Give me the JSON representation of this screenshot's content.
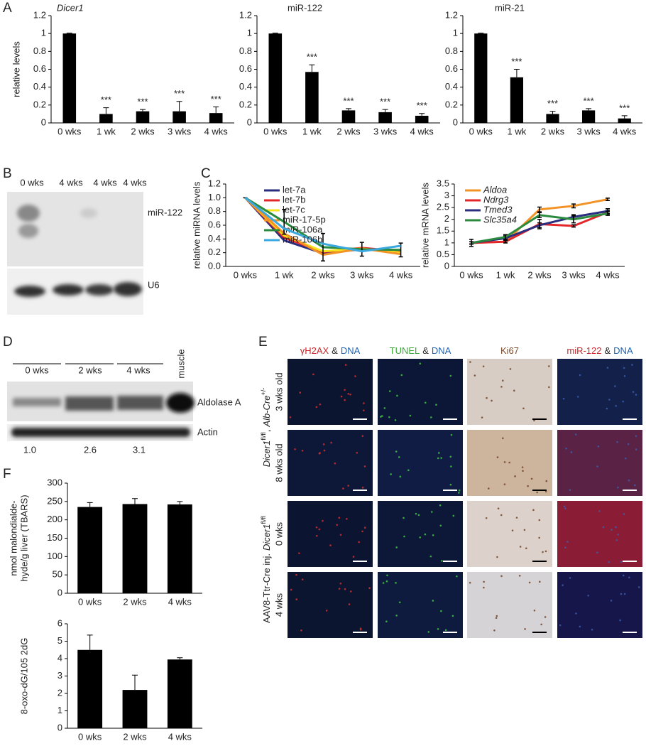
{
  "panel_letters": [
    "A",
    "B",
    "C",
    "D",
    "E",
    "F"
  ],
  "chart_data": [
    {
      "type": "bar",
      "title": "Dicer1",
      "title_italic": true,
      "y_label": [
        "relative levels"
      ],
      "categories": [
        "0 wks",
        "1 wk",
        "2 wks",
        "3 wks",
        "4 wks"
      ],
      "values": [
        1.0,
        0.1,
        0.13,
        0.13,
        0.11
      ],
      "errors": [
        0.005,
        0.07,
        0.02,
        0.11,
        0.07
      ],
      "annotations": [
        null,
        "***",
        "***",
        "***",
        "***"
      ],
      "color": "#000000",
      "ylim": [
        0,
        1.2
      ],
      "yticks": [
        0,
        0.2,
        0.4,
        0.6,
        0.8,
        1,
        1.2
      ]
    },
    {
      "type": "bar",
      "title": "miR-122",
      "categories": [
        "0 wks",
        "1 wk",
        "2 wks",
        "3 wks",
        "4 wks"
      ],
      "values": [
        1.0,
        0.57,
        0.14,
        0.12,
        0.08
      ],
      "errors": [
        0.005,
        0.08,
        0.02,
        0.03,
        0.025
      ],
      "annotations": [
        null,
        "***",
        "***",
        "***",
        "***"
      ],
      "color": "#000000",
      "ylim": [
        0,
        1.2
      ],
      "yticks": [
        0,
        0.2,
        0.4,
        0.6,
        0.8,
        1,
        1.2
      ]
    },
    {
      "type": "bar",
      "title": "miR-21",
      "categories": [
        "0 wks",
        "1 wk",
        "2 wks",
        "3 wks",
        "4 wks"
      ],
      "values": [
        1.0,
        0.51,
        0.1,
        0.14,
        0.05
      ],
      "errors": [
        0.005,
        0.09,
        0.03,
        0.02,
        0.03
      ],
      "annotations": [
        null,
        "***",
        "***",
        "***",
        "***"
      ],
      "color": "#000000",
      "ylim": [
        0,
        1.2
      ],
      "yticks": [
        0,
        0.2,
        0.4,
        0.6,
        0.8,
        1,
        1.2
      ]
    },
    {
      "type": "line",
      "y_label": [
        "relative miRNA levels"
      ],
      "categories": [
        "0 wks",
        "1 wk",
        "2 wks",
        "3 wks",
        "4 wks"
      ],
      "ylim": [
        0,
        1.2
      ],
      "yticks": [
        {
          "value": 0,
          "label": "0.0"
        },
        0.2,
        0.4,
        0.6,
        0.8,
        {
          "value": 1,
          "label": "1.0"
        },
        1.2
      ],
      "series": [
        {
          "name": "let-7a",
          "color": "#2b2d7f",
          "values": [
            1.0,
            0.38,
            0.19,
            0.25,
            0.21
          ]
        },
        {
          "name": "let-7b",
          "color": "#e3262a",
          "values": [
            1.0,
            0.42,
            0.21,
            0.27,
            0.22
          ]
        },
        {
          "name": "let-7c",
          "color": "#f5e51c",
          "values": [
            1.0,
            0.45,
            0.22,
            0.26,
            0.2
          ]
        },
        {
          "name": "miR-17-5p",
          "color": "#f39325",
          "values": [
            1.0,
            0.48,
            0.17,
            0.26,
            0.18
          ]
        },
        {
          "name": "miR-106a",
          "color": "#2a8a3e",
          "values": [
            1.0,
            0.65,
            0.28,
            0.25,
            0.24
          ],
          "errors": [
            0,
            0.18,
            0.2,
            0.1,
            0.1
          ]
        },
        {
          "name": "miR-106b",
          "color": "#3ba9e0",
          "values": [
            1.0,
            0.55,
            0.33,
            0.22,
            0.3
          ]
        }
      ]
    },
    {
      "type": "line",
      "legend_italic": true,
      "y_label": [
        "relative mRNA levels"
      ],
      "categories": [
        "0 wks",
        "1 wk",
        "2 wks",
        "3 wks",
        "4 wks"
      ],
      "ylim": [
        0,
        3.5
      ],
      "yticks": [
        0,
        0.5,
        1,
        1.5,
        2,
        2.5,
        3,
        3.5
      ],
      "series": [
        {
          "name": "Aldoa",
          "color": "#f39325",
          "values": [
            1.0,
            1.05,
            2.42,
            2.57,
            2.85
          ],
          "errors": [
            0.05,
            0.05,
            0.1,
            0.08,
            0.05
          ]
        },
        {
          "name": "Ndrg3",
          "color": "#e3262a",
          "values": [
            1.0,
            1.05,
            1.8,
            1.72,
            2.3
          ],
          "errors": [
            0.05,
            0.05,
            0.2,
            0.05,
            0.08
          ]
        },
        {
          "name": "Tmed3",
          "color": "#2b2d7f",
          "values": [
            1.0,
            1.2,
            1.75,
            2.1,
            2.35
          ],
          "errors": [
            0.15,
            0.1,
            0.1,
            0.1,
            0.1
          ]
        },
        {
          "name": "Slc35a4",
          "color": "#2a8a3e",
          "values": [
            1.0,
            1.25,
            2.18,
            2.0,
            2.25
          ],
          "errors": [
            0.05,
            0.1,
            0.1,
            0.15,
            0.08
          ]
        }
      ]
    },
    {
      "type": "bar",
      "y_label": [
        "nmol malondialde-",
        "hyde/g liver (TBARS)"
      ],
      "categories": [
        "0 wks",
        "2 wks",
        "4 wks"
      ],
      "values": [
        235,
        243,
        242
      ],
      "errors": [
        12,
        15,
        8
      ],
      "color": "#000000",
      "ylim": [
        0,
        300
      ],
      "yticks": [
        0,
        50,
        100,
        150,
        200,
        250,
        300
      ]
    },
    {
      "type": "bar",
      "y_label": [
        "8-oxo-dG/105 2dG"
      ],
      "categories": [
        "0 wks",
        "2 wks",
        "4 wks"
      ],
      "values": [
        4.5,
        2.2,
        3.95
      ],
      "errors": [
        0.85,
        0.85,
        0.1
      ],
      "color": "#000000",
      "ylim": [
        0,
        6
      ],
      "yticks": [
        0,
        1,
        2,
        3,
        4,
        5,
        6
      ]
    }
  ],
  "blot_b": {
    "lanes": [
      "0 wks",
      "4 wks",
      "4 wks",
      "4 wks"
    ],
    "bands": [
      "miR-122",
      "U6"
    ]
  },
  "blot_d": {
    "groups": [
      "0 wks",
      "2 wks",
      "4 wks",
      "muscle"
    ],
    "bands": [
      "Aldolase A",
      "Actin"
    ],
    "quantification": [
      "1.0",
      "2.6",
      "3.1"
    ]
  },
  "micrographs": {
    "columns": [
      {
        "parts": [
          "γH2AX",
          "&",
          "DNA"
        ],
        "colors": [
          "#c8262c",
          "#222222",
          "#1f63b0"
        ]
      },
      {
        "parts": [
          "TUNEL",
          "&",
          "DNA"
        ],
        "colors": [
          "#3aa935",
          "#222222",
          "#1f63b0"
        ]
      },
      {
        "parts": [
          "Ki67"
        ],
        "colors": [
          "#7b4a2a"
        ]
      },
      {
        "parts": [
          "miR-122",
          "&",
          "DNA"
        ],
        "colors": [
          "#c8262c",
          "#222222",
          "#1f63b0"
        ]
      }
    ],
    "row_groups": [
      {
        "label": [
          "Dicer1",
          "fl/fl",
          ",",
          "Alb-Cre",
          "+/-"
        ],
        "styles": [
          "italic",
          "sup",
          "normal",
          "italic",
          "sup"
        ],
        "rows": [
          "3 wks old",
          "8 wks old"
        ]
      },
      {
        "label": [
          "AAV8-Ttr-Cre inj.",
          "Dicer1",
          "fl/fl"
        ],
        "styles": [
          "normal",
          "italic",
          "sup"
        ],
        "rows": [
          "0 wks",
          "4 wks"
        ]
      }
    ]
  }
}
